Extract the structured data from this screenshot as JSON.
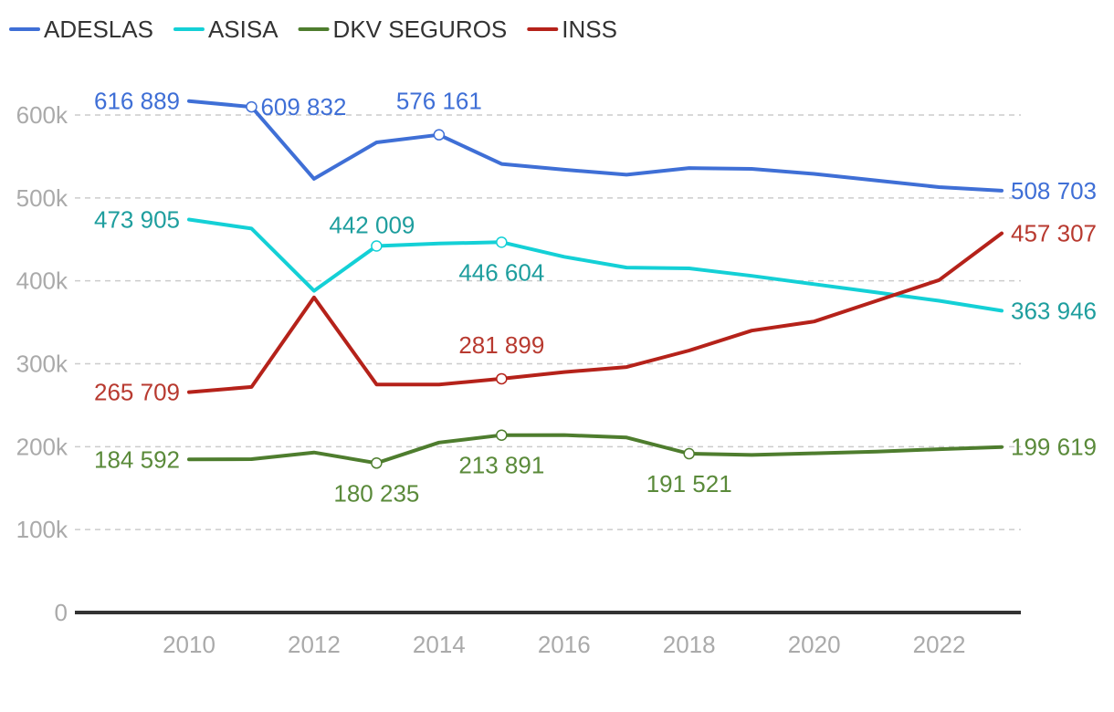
{
  "chart_data": {
    "type": "line",
    "title": "",
    "xlabel": "",
    "ylabel": "",
    "x": [
      2010,
      2011,
      2012,
      2013,
      2014,
      2015,
      2016,
      2017,
      2018,
      2019,
      2020,
      2021,
      2022,
      2023
    ],
    "xlim": [
      2008.3,
      2023.3
    ],
    "ylim": [
      0,
      650000
    ],
    "x_ticks": [
      2010,
      2012,
      2014,
      2016,
      2018,
      2020,
      2022
    ],
    "x_tick_labels": [
      "2010",
      "2012",
      "2014",
      "2016",
      "2018",
      "2020",
      "2022"
    ],
    "y_ticks": [
      0,
      100000,
      200000,
      300000,
      400000,
      500000,
      600000
    ],
    "y_tick_labels": [
      "0",
      "100k",
      "200k",
      "300k",
      "400k",
      "500k",
      "600k"
    ],
    "grid": true,
    "legend_position": "top-left",
    "series": [
      {
        "name": "ADESLAS",
        "color": "#3F6FD6",
        "values": [
          616889,
          609832,
          523000,
          567000,
          576161,
          541000,
          534000,
          528000,
          536000,
          535000,
          529000,
          521000,
          513000,
          508703
        ],
        "labels": [
          {
            "index": 0,
            "text": "616 889",
            "anchor": "end",
            "placement": "left"
          },
          {
            "index": 1,
            "text": "609 832",
            "anchor": "start",
            "placement": "right",
            "marker": true
          },
          {
            "index": 4,
            "text": "576 161",
            "anchor": "middle",
            "placement": "above",
            "marker": true
          },
          {
            "index": 13,
            "text": "508 703",
            "anchor": "start",
            "placement": "right"
          }
        ]
      },
      {
        "name": "ASISA",
        "color": "#14D0D6",
        "label_color": "#1E9E9E",
        "values": [
          473905,
          463000,
          388000,
          442009,
          445000,
          446604,
          429000,
          416000,
          415000,
          406000,
          396000,
          386000,
          376000,
          363946
        ],
        "labels": [
          {
            "index": 0,
            "text": "473 905",
            "anchor": "end",
            "placement": "left"
          },
          {
            "index": 3,
            "text": "442 009",
            "anchor": "start",
            "placement": "above-right",
            "marker": true
          },
          {
            "index": 5,
            "text": "446 604",
            "anchor": "middle",
            "placement": "below",
            "marker": true
          },
          {
            "index": 13,
            "text": "363 946",
            "anchor": "start",
            "placement": "right"
          }
        ]
      },
      {
        "name": "DKV SEGUROS",
        "color": "#4E7D2E",
        "label_color": "#5A8A3A",
        "values": [
          184592,
          185000,
          193000,
          180235,
          205000,
          213891,
          214000,
          211000,
          191521,
          190000,
          192000,
          194000,
          197000,
          199619
        ],
        "labels": [
          {
            "index": 0,
            "text": "184 592",
            "anchor": "end",
            "placement": "left"
          },
          {
            "index": 3,
            "text": "180 235",
            "anchor": "middle",
            "placement": "below",
            "marker": true
          },
          {
            "index": 5,
            "text": "213 891",
            "anchor": "middle",
            "placement": "below",
            "marker": true
          },
          {
            "index": 8,
            "text": "191 521",
            "anchor": "middle",
            "placement": "below",
            "marker": true
          },
          {
            "index": 13,
            "text": "199 619",
            "anchor": "start",
            "placement": "right"
          }
        ]
      },
      {
        "name": "INSS",
        "color": "#B5221A",
        "label_color": "#B83A30",
        "values": [
          265709,
          272000,
          380000,
          275000,
          275000,
          281899,
          290000,
          296000,
          316000,
          340000,
          351000,
          376000,
          401000,
          457307
        ],
        "labels": [
          {
            "index": 0,
            "text": "265 709",
            "anchor": "end",
            "placement": "left"
          },
          {
            "index": 5,
            "text": "281 899",
            "anchor": "middle",
            "placement": "above",
            "marker": true
          },
          {
            "index": 13,
            "text": "457 307",
            "anchor": "start",
            "placement": "right"
          }
        ]
      }
    ]
  }
}
